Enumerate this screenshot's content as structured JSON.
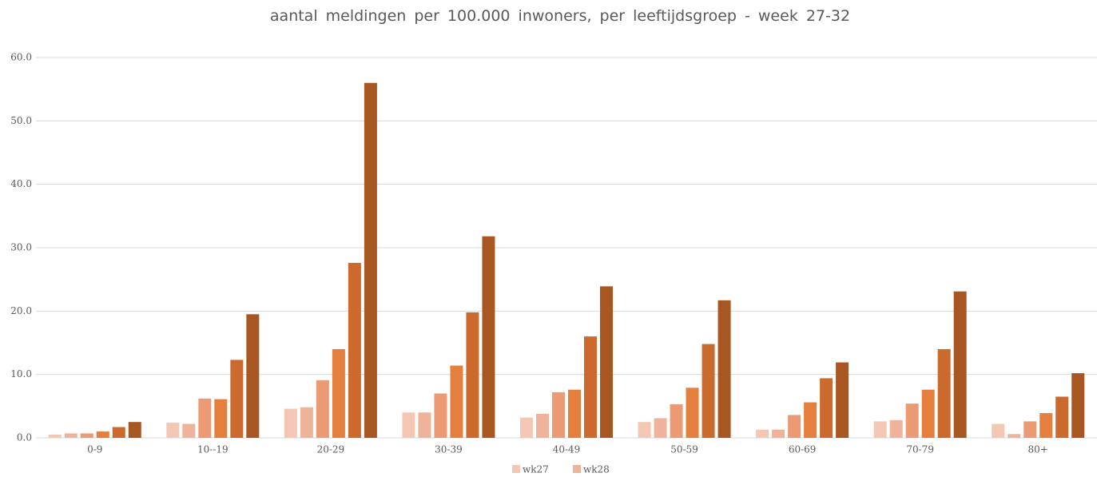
{
  "chart_data": {
    "type": "bar",
    "title": "aantal meldingen per 100.000 inwoners, per leeftijdsgroep - week 27-32",
    "categories": [
      "0-9",
      "10--19",
      "20-29",
      "30-39",
      "40-49",
      "50-59",
      "60-69",
      "70-79",
      "80+"
    ],
    "series": [
      {
        "name": "wk27",
        "color": "#f4c6b4",
        "values": [
          0.5,
          2.4,
          4.6,
          4.0,
          3.2,
          2.5,
          1.3,
          2.6,
          2.2
        ]
      },
      {
        "name": "wk28",
        "color": "#efb29a",
        "values": [
          0.7,
          2.2,
          4.8,
          4.0,
          3.8,
          3.1,
          1.3,
          2.8,
          0.6
        ]
      },
      {
        "color": "#eb9a73",
        "values": [
          0.7,
          6.2,
          9.1,
          7.0,
          7.2,
          5.3,
          3.6,
          5.4,
          2.6
        ]
      },
      {
        "color": "#e47f3d",
        "values": [
          1.0,
          6.1,
          14.0,
          11.4,
          7.6,
          7.9,
          5.6,
          7.6,
          3.9
        ]
      },
      {
        "color": "#cc6a2d",
        "values": [
          1.7,
          12.3,
          27.6,
          19.8,
          16.0,
          14.8,
          9.4,
          14.0,
          6.5
        ]
      },
      {
        "color": "#a95722",
        "values": [
          2.5,
          19.5,
          56.0,
          31.8,
          23.9,
          21.7,
          11.9,
          23.1,
          10.2
        ]
      }
    ],
    "ylim": [
      0,
      60
    ],
    "yticks": [
      {
        "value": 0,
        "label": "0.0"
      },
      {
        "value": 10,
        "label": "10.0"
      },
      {
        "value": 20,
        "label": "20.0"
      },
      {
        "value": 30,
        "label": "30.0"
      },
      {
        "value": 40,
        "label": "40.0"
      },
      {
        "value": 50,
        "label": "50.0"
      },
      {
        "value": 60,
        "label": "60.0"
      }
    ],
    "grid": true
  }
}
